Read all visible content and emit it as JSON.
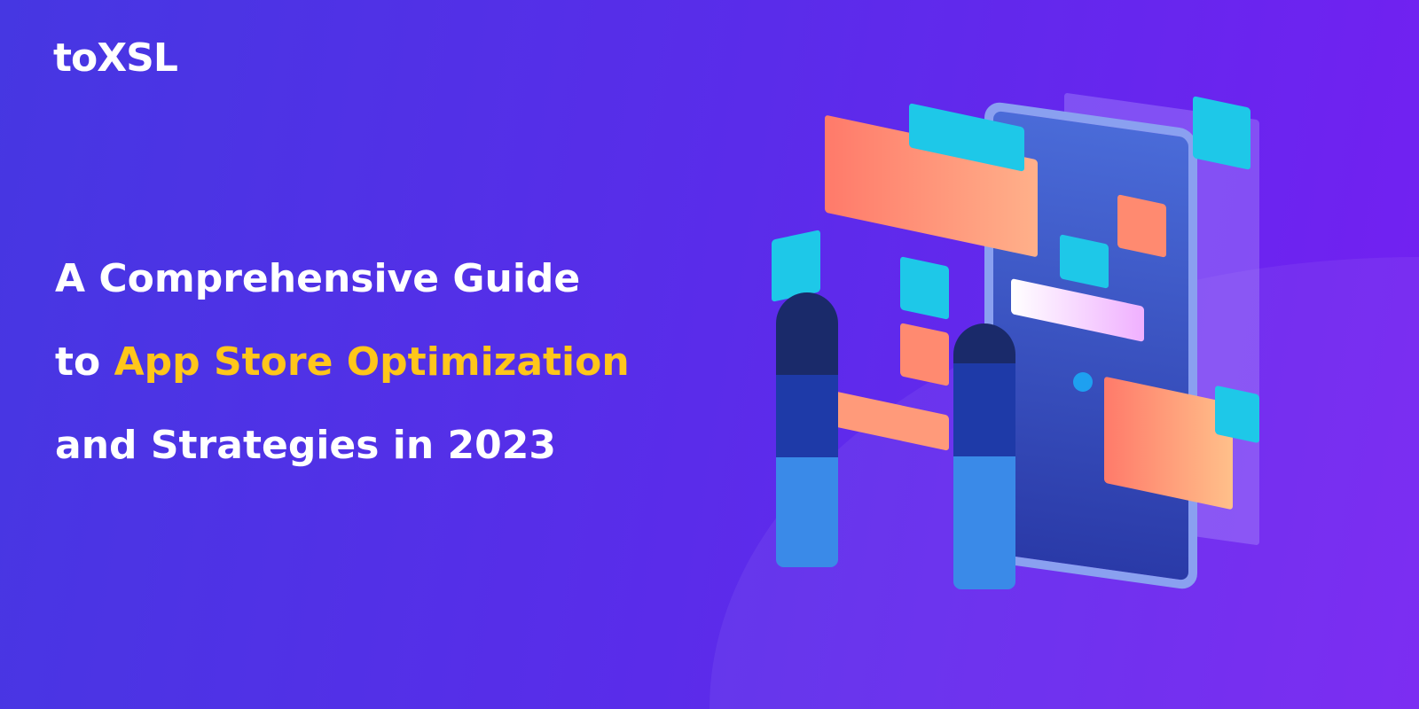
{
  "brand": {
    "logo_text": "toXSL"
  },
  "headline": {
    "line1": "A Comprehensive Guide",
    "line2_prefix": "to ",
    "line2_highlight": "App Store Optimization",
    "line3": "and Strategies in 2023"
  },
  "colors": {
    "background_start": "#4637e2",
    "background_end": "#7420f2",
    "highlight": "#ffc61a",
    "text": "#ffffff"
  },
  "illustration": {
    "icons": [
      "user-profile-icon",
      "google-play-icon",
      "phone-call-icon",
      "mail-icon",
      "wifi-icon",
      "cloud-download-icon",
      "eye-icon",
      "search-icon",
      "app-store-icon",
      "chart-icon",
      "media-controls-icon"
    ]
  }
}
